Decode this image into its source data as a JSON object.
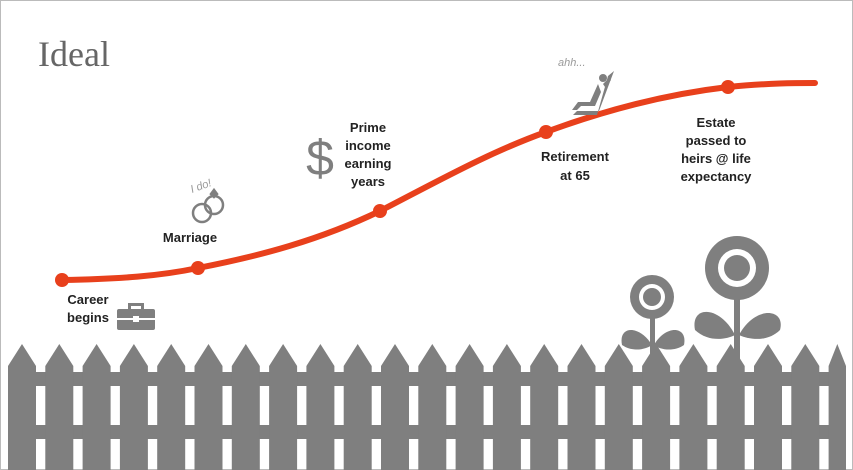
{
  "title": "Ideal",
  "milestones": [
    {
      "label_lines": [
        "Career",
        "begins"
      ]
    },
    {
      "label_lines": [
        "Marriage"
      ]
    },
    {
      "label_lines": [
        "Prime",
        "income",
        "earning",
        "years"
      ]
    },
    {
      "label_lines": [
        "Retirement",
        "at 65"
      ]
    },
    {
      "label_lines": [
        "Estate",
        "passed to",
        "heirs @ life",
        "expectancy"
      ]
    }
  ],
  "annotations": {
    "marriage": "I do!",
    "retirement": "ahh...",
    "income_symbol": "$"
  }
}
